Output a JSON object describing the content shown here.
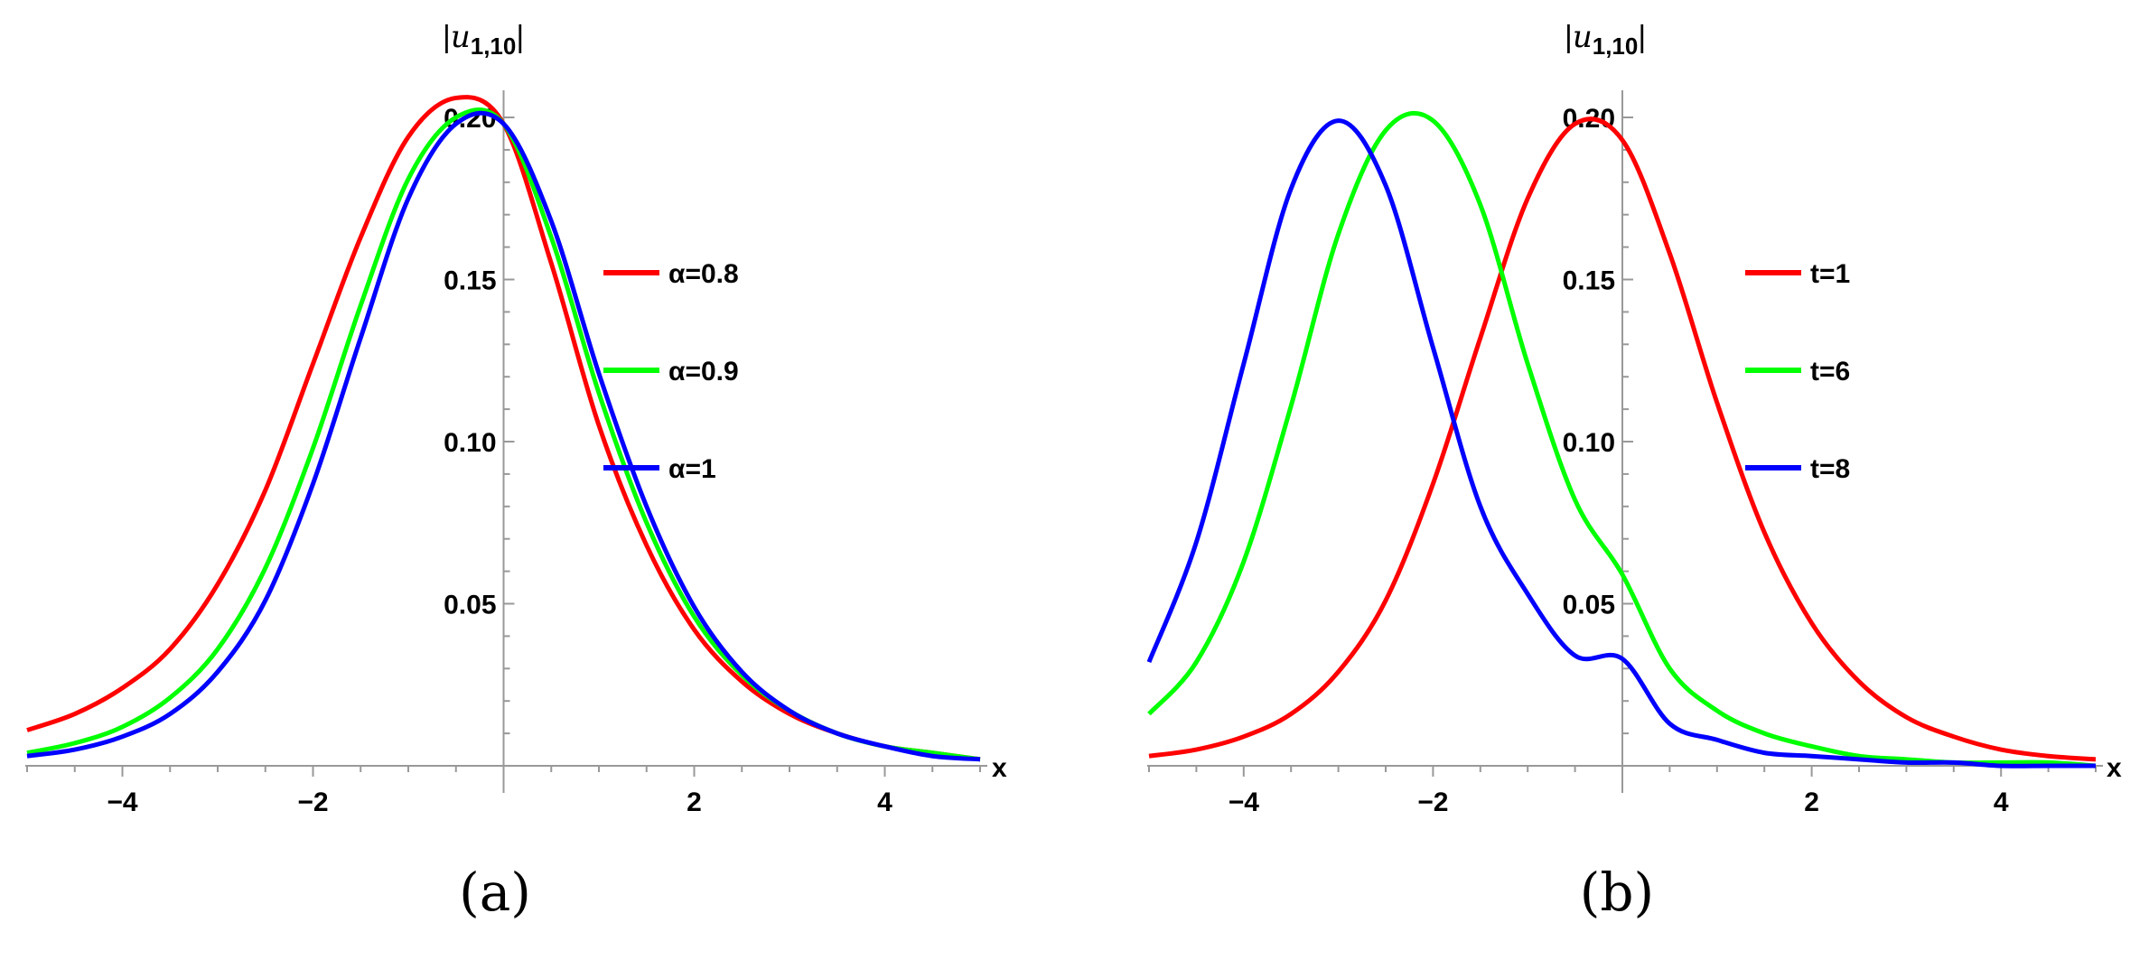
{
  "chart_data": [
    {
      "type": "line",
      "panel_label": "(a)",
      "ylabel": "|u1,10|",
      "xlabel": "x",
      "xlim": [
        -5,
        5
      ],
      "ylim": [
        0,
        0.21
      ],
      "xticks": [
        -4,
        -2,
        2,
        4
      ],
      "xtick_labels": [
        "−4",
        "−2",
        "2",
        "4"
      ],
      "yticks": [
        0.05,
        0.1,
        0.15,
        0.2
      ],
      "ytick_labels": [
        "0.05",
        "0.10",
        "0.15",
        "0.20"
      ],
      "grid": false,
      "legend_position": "right of y-axis, upper-middle",
      "x": [
        -5,
        -4.5,
        -4,
        -3.5,
        -3,
        -2.5,
        -2,
        -1.5,
        -1,
        -0.5,
        0,
        0.5,
        1,
        1.5,
        2,
        2.5,
        3,
        3.5,
        4,
        4.5,
        5
      ],
      "series": [
        {
          "name": "α=0.8",
          "color": "#ff0000",
          "values": [
            0.011,
            0.016,
            0.024,
            0.036,
            0.056,
            0.085,
            0.124,
            0.163,
            0.194,
            0.206,
            0.198,
            0.155,
            0.105,
            0.068,
            0.042,
            0.026,
            0.016,
            0.01,
            0.006,
            0.004,
            0.002
          ]
        },
        {
          "name": "α=0.9",
          "color": "#00ff00",
          "values": [
            0.004,
            0.007,
            0.012,
            0.021,
            0.036,
            0.061,
            0.098,
            0.142,
            0.181,
            0.2,
            0.198,
            0.163,
            0.115,
            0.075,
            0.046,
            0.028,
            0.017,
            0.01,
            0.006,
            0.004,
            0.002
          ]
        },
        {
          "name": "α=1",
          "color": "#0000ff",
          "values": [
            0.003,
            0.005,
            0.009,
            0.016,
            0.029,
            0.051,
            0.087,
            0.132,
            0.175,
            0.198,
            0.198,
            0.168,
            0.121,
            0.08,
            0.049,
            0.029,
            0.017,
            0.01,
            0.006,
            0.003,
            0.002
          ]
        }
      ]
    },
    {
      "type": "line",
      "panel_label": "(b)",
      "ylabel": "|u1,10|",
      "xlabel": "x",
      "xlim": [
        -5,
        5
      ],
      "ylim": [
        0,
        0.21
      ],
      "xticks": [
        -4,
        -2,
        2,
        4
      ],
      "xtick_labels": [
        "−4",
        "−2",
        "2",
        "4"
      ],
      "yticks": [
        0.05,
        0.1,
        0.15,
        0.2
      ],
      "ytick_labels": [
        "0.05",
        "0.10",
        "0.15",
        "0.20"
      ],
      "grid": false,
      "legend_position": "right of y-axis, upper-middle",
      "x": [
        -5,
        -4.5,
        -4,
        -3.5,
        -3,
        -2.5,
        -2,
        -1.5,
        -1,
        -0.5,
        0,
        0.5,
        1,
        1.5,
        2,
        2.5,
        3,
        3.5,
        4,
        4.5,
        5
      ],
      "series": [
        {
          "name": "t=1",
          "color": "#ff0000",
          "values": [
            0.003,
            0.005,
            0.009,
            0.016,
            0.029,
            0.051,
            0.087,
            0.132,
            0.175,
            0.198,
            0.193,
            0.158,
            0.112,
            0.072,
            0.044,
            0.026,
            0.015,
            0.009,
            0.005,
            0.003,
            0.002
          ]
        },
        {
          "name": "t=6",
          "color": "#00ff00",
          "values": [
            0.016,
            0.032,
            0.063,
            0.111,
            0.164,
            0.196,
            0.199,
            0.173,
            0.124,
            0.082,
            0.059,
            0.03,
            0.017,
            0.01,
            0.006,
            0.003,
            0.002,
            0.001,
            0.001,
            0.001,
            0.0
          ]
        },
        {
          "name": "t=8",
          "color": "#0000ff",
          "values": [
            0.032,
            0.069,
            0.124,
            0.178,
            0.199,
            0.179,
            0.129,
            0.08,
            0.053,
            0.034,
            0.033,
            0.013,
            0.008,
            0.004,
            0.003,
            0.002,
            0.001,
            0.001,
            0.0,
            0.0,
            0.0
          ]
        }
      ]
    }
  ]
}
